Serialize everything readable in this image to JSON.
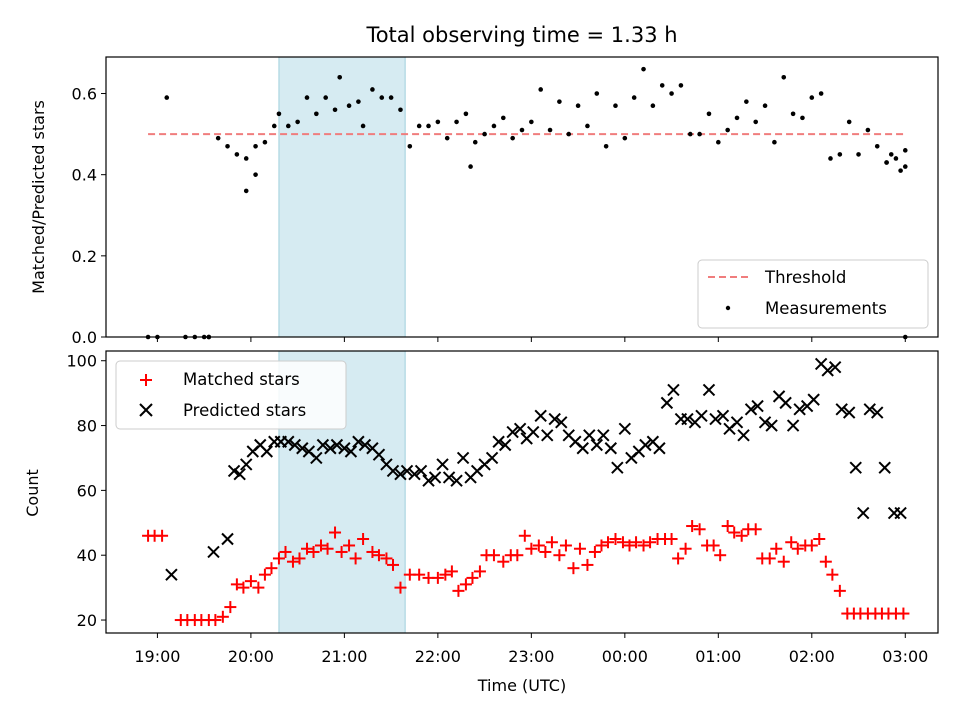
{
  "colors": {
    "threshold": "#f07d7d",
    "measurements": "#000000",
    "matched": "#ff0000",
    "predicted": "#000000",
    "shade": "#add8e6"
  },
  "chart_data": [
    {
      "type": "scatter",
      "title": "Total observing time = 1.33 h",
      "xlabel": "",
      "ylabel": "Matched/Predicted stars",
      "xlim": [
        18.45,
        27.35
      ],
      "ylim": [
        0,
        0.69
      ],
      "y_ticks": [
        "0.0",
        "0.2",
        "0.4",
        "0.6"
      ],
      "y_tick_values": [
        0,
        0.2,
        0.4,
        0.6
      ],
      "grid": false,
      "legend_position": "lower right",
      "shaded_span": [
        20.3,
        21.65
      ],
      "series": [
        {
          "name": "Threshold",
          "kind": "dashed-line",
          "x": [
            18.9,
            27.0
          ],
          "y": [
            0.5,
            0.5
          ]
        },
        {
          "name": "Measurements",
          "kind": "dots",
          "x": [
            18.9,
            19.0,
            19.1,
            19.3,
            19.4,
            19.5,
            19.55,
            19.65,
            19.75,
            19.85,
            19.95,
            20.05,
            20.15,
            20.25,
            20.3,
            20.4,
            20.5,
            20.6,
            20.7,
            20.8,
            20.9,
            20.95,
            21.05,
            21.15,
            21.2,
            21.3,
            21.4,
            21.5,
            21.6,
            21.7,
            21.8,
            21.9,
            22.0,
            22.1,
            22.2,
            22.3,
            22.35,
            22.4,
            22.5,
            22.6,
            22.7,
            22.8,
            22.9,
            23.0,
            23.1,
            23.2,
            23.3,
            23.4,
            23.5,
            23.6,
            23.7,
            23.8,
            23.9,
            24.0,
            24.1,
            24.2,
            24.3,
            24.4,
            24.5,
            24.6,
            24.7,
            24.8,
            24.9,
            25.0,
            25.1,
            25.2,
            25.3,
            25.4,
            25.5,
            25.6,
            25.7,
            25.8,
            25.9,
            26.0,
            26.1,
            26.2,
            26.3,
            26.4,
            26.5,
            26.6,
            26.7,
            26.8,
            26.9,
            27.0
          ],
          "y": [
            0.0,
            0.0,
            0.59,
            0.0,
            0.0,
            0.0,
            0.0,
            0.49,
            0.47,
            0.45,
            0.44,
            0.47,
            0.48,
            0.52,
            0.55,
            0.52,
            0.53,
            0.59,
            0.55,
            0.59,
            0.56,
            0.64,
            0.57,
            0.58,
            0.52,
            0.61,
            0.59,
            0.59,
            0.56,
            0.47,
            0.52,
            0.52,
            0.53,
            0.49,
            0.53,
            0.55,
            0.42,
            0.48,
            0.5,
            0.52,
            0.54,
            0.49,
            0.51,
            0.53,
            0.61,
            0.51,
            0.58,
            0.5,
            0.57,
            0.52,
            0.6,
            0.47,
            0.57,
            0.49,
            0.59,
            0.66,
            0.57,
            0.62,
            0.6,
            0.62,
            0.5,
            0.5,
            0.55,
            0.48,
            0.51,
            0.54,
            0.58,
            0.53,
            0.57,
            0.48,
            0.64,
            0.55,
            0.54,
            0.59,
            0.6,
            0.44,
            0.45,
            0.53,
            0.45,
            0.51,
            0.47,
            0.43,
            0.44,
            0.46
          ]
        }
      ],
      "extra_points": [
        {
          "x": 19.95,
          "y": 0.36
        },
        {
          "x": 20.05,
          "y": 0.4
        },
        {
          "x": 26.95,
          "y": 0.41
        },
        {
          "x": 27.0,
          "y": 0.42
        },
        {
          "x": 26.85,
          "y": 0.45
        },
        {
          "x": 26.8,
          "y": 0.43
        },
        {
          "x": 27.0,
          "y": 0.0
        },
        {
          "x": 19.55,
          "y": 0.0
        }
      ]
    },
    {
      "type": "scatter",
      "title": "",
      "xlabel": "Time (UTC)",
      "ylabel": "Count",
      "xlim": [
        18.45,
        27.35
      ],
      "ylim": [
        16,
        103
      ],
      "y_ticks": [
        "20",
        "40",
        "60",
        "80",
        "100"
      ],
      "y_tick_values": [
        20,
        40,
        60,
        80,
        100
      ],
      "x_ticks": [
        "19:00",
        "20:00",
        "21:00",
        "22:00",
        "23:00",
        "00:00",
        "01:00",
        "02:00",
        "03:00"
      ],
      "x_tick_values": [
        19,
        20,
        21,
        22,
        23,
        24,
        25,
        26,
        27
      ],
      "grid": false,
      "legend_position": "upper left",
      "shaded_span": [
        20.3,
        21.65
      ],
      "series": [
        {
          "name": "Matched stars",
          "marker": "+",
          "x": [
            18.9,
            18.97,
            19.05,
            19.25,
            19.32,
            19.4,
            19.47,
            19.55,
            19.62,
            19.7,
            19.78,
            19.85,
            19.92,
            20.0,
            20.08,
            20.15,
            20.22,
            20.3,
            20.37,
            20.45,
            20.52,
            20.6,
            20.67,
            20.75,
            20.82,
            20.9,
            20.97,
            21.05,
            21.12,
            21.2,
            21.3,
            21.37,
            21.45,
            21.52,
            21.6,
            21.7,
            21.8,
            21.9,
            22.0,
            22.08,
            22.15,
            22.22,
            22.3,
            22.37,
            22.45,
            22.52,
            22.6,
            22.7,
            22.78,
            22.85,
            22.93,
            23.0,
            23.08,
            23.15,
            23.22,
            23.3,
            23.37,
            23.45,
            23.52,
            23.6,
            23.68,
            23.75,
            23.82,
            23.9,
            23.98,
            24.05,
            24.12,
            24.2,
            24.27,
            24.35,
            24.43,
            24.5,
            24.57,
            24.65,
            24.72,
            24.8,
            24.88,
            24.95,
            25.02,
            25.1,
            25.17,
            25.25,
            25.32,
            25.4,
            25.47,
            25.55,
            25.62,
            25.7,
            25.78,
            25.85,
            25.93,
            26.0,
            26.08,
            26.15,
            26.22,
            26.3,
            26.38,
            26.45,
            26.52,
            26.6,
            26.68,
            26.75,
            26.82,
            26.9,
            26.98
          ],
          "y": [
            46,
            46,
            46,
            20,
            20,
            20,
            20,
            20,
            20,
            21,
            24,
            31,
            30,
            32,
            30,
            34,
            36,
            39,
            41,
            38,
            39,
            42,
            41,
            43,
            42,
            47,
            41,
            43,
            39,
            45,
            41,
            40,
            39,
            37,
            30,
            34,
            34,
            33,
            33,
            34,
            35,
            29,
            31,
            33,
            35,
            40,
            40,
            38,
            40,
            40,
            46,
            42,
            43,
            41,
            44,
            40,
            43,
            36,
            42,
            37,
            41,
            43,
            44,
            45,
            44,
            43,
            44,
            43,
            44,
            45,
            45,
            45,
            39,
            42,
            49,
            48,
            43,
            43,
            40,
            49,
            47,
            46,
            48,
            48,
            39,
            39,
            42,
            38,
            44,
            42,
            43,
            43,
            45,
            38,
            34,
            29,
            22,
            22,
            22,
            22,
            22,
            22,
            22,
            22,
            22
          ]
        },
        {
          "name": "Predicted stars",
          "marker": "x",
          "x": [
            19.15,
            19.6,
            19.75,
            19.82,
            19.88,
            19.95,
            20.02,
            20.1,
            20.17,
            20.25,
            20.32,
            20.4,
            20.47,
            20.55,
            20.62,
            20.7,
            20.77,
            20.85,
            20.92,
            21.0,
            21.07,
            21.15,
            21.22,
            21.3,
            21.37,
            21.45,
            21.52,
            21.6,
            21.67,
            21.75,
            21.82,
            21.9,
            21.97,
            22.05,
            22.12,
            22.2,
            22.27,
            22.35,
            22.42,
            22.5,
            22.58,
            22.65,
            22.72,
            22.8,
            22.88,
            22.95,
            23.02,
            23.1,
            23.17,
            23.25,
            23.32,
            23.4,
            23.47,
            23.55,
            23.62,
            23.7,
            23.77,
            23.85,
            23.92,
            24.0,
            24.07,
            24.15,
            24.22,
            24.3,
            24.37,
            24.45,
            24.52,
            24.6,
            24.67,
            24.75,
            24.82,
            24.9,
            24.97,
            25.05,
            25.12,
            25.2,
            25.27,
            25.35,
            25.42,
            25.5,
            25.57,
            25.65,
            25.72,
            25.8,
            25.87,
            25.95,
            26.02,
            26.1,
            26.17,
            26.25,
            26.32,
            26.4,
            26.47,
            26.55,
            26.62,
            26.7,
            26.78,
            26.88,
            26.95
          ],
          "y": [
            34,
            41,
            45,
            66,
            65,
            68,
            72,
            74,
            72,
            75,
            75,
            75,
            74,
            73,
            72,
            70,
            74,
            73,
            74,
            73,
            72,
            75,
            74,
            73,
            71,
            68,
            66,
            65,
            66,
            65,
            66,
            63,
            64,
            68,
            64,
            63,
            70,
            64,
            66,
            68,
            70,
            75,
            74,
            78,
            79,
            76,
            78,
            83,
            77,
            82,
            81,
            77,
            75,
            73,
            77,
            74,
            77,
            73,
            67,
            79,
            70,
            72,
            74,
            75,
            73,
            87,
            91,
            82,
            82,
            81,
            83,
            91,
            82,
            83,
            79,
            81,
            77,
            85,
            86,
            81,
            80,
            89,
            87,
            80,
            85,
            86,
            88,
            99,
            97,
            98,
            85,
            84,
            67,
            53,
            85,
            84,
            67,
            53,
            53
          ]
        }
      ]
    }
  ],
  "legend_top": {
    "items": [
      "Threshold",
      "Measurements"
    ]
  },
  "legend_bottom": {
    "items": [
      "Matched stars",
      "Predicted stars"
    ]
  }
}
